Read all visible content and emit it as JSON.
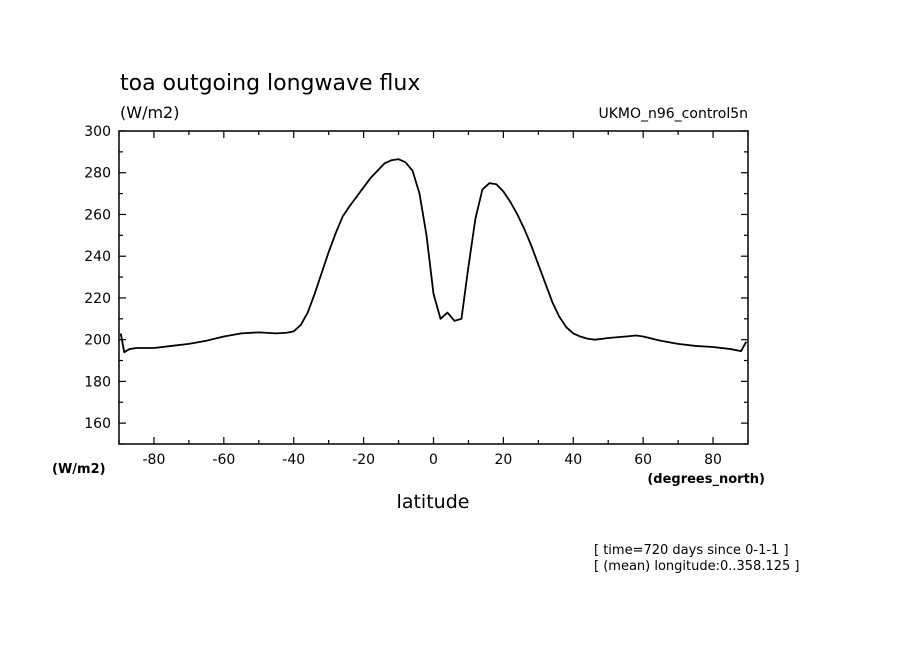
{
  "chart_data": {
    "type": "line",
    "title": "toa outgoing longwave flux",
    "units": "(W/m2)",
    "source_label": "UKMO_n96_control5n",
    "xlabel": "latitude",
    "x_units": "(degrees_north)",
    "y_units": "(W/m2)",
    "xlim": [
      -90,
      90
    ],
    "ylim": [
      150,
      300
    ],
    "x_ticks": [
      -80,
      -60,
      -40,
      -20,
      0,
      20,
      40,
      60,
      80
    ],
    "y_ticks": [
      160,
      180,
      200,
      220,
      240,
      260,
      280,
      300
    ],
    "x_tick_labels": [
      "-80",
      "-60",
      "-40",
      "-20",
      "0",
      "20",
      "40",
      "60",
      "80"
    ],
    "y_tick_labels": [
      "160",
      "180",
      "200",
      "220",
      "240",
      "260",
      "280",
      "300"
    ],
    "grid": false,
    "legend": "none",
    "annotations": [
      "[ time=720 days since 0-1-1 ]",
      "[ (mean) longitude:0..358.125 ]"
    ],
    "series": [
      {
        "x": [
          -89.5,
          -88.5,
          -87,
          -85,
          -80,
          -75,
          -70,
          -65,
          -60,
          -55,
          -50,
          -45,
          -42,
          -40,
          -38,
          -36,
          -34,
          -32,
          -30,
          -28,
          -26,
          -24,
          -22,
          -20,
          -18,
          -16,
          -14,
          -12,
          -10,
          -8,
          -6,
          -4,
          -2,
          0,
          2,
          4,
          6,
          8,
          10,
          12,
          14,
          16,
          18,
          20,
          22,
          24,
          26,
          28,
          30,
          32,
          34,
          36,
          38,
          40,
          42,
          44,
          46,
          48,
          50,
          55,
          58,
          60,
          65,
          70,
          75,
          80,
          85,
          88,
          89.5
        ],
        "values": [
          203,
          194,
          195.5,
          196,
          196,
          197,
          198,
          199.5,
          201.5,
          203,
          203.5,
          203,
          203.3,
          204,
          207,
          213,
          222,
          232,
          242,
          251,
          259,
          264,
          268.5,
          273,
          277.5,
          281,
          284.5,
          286,
          286.5,
          285,
          281,
          270,
          250,
          222,
          210,
          213,
          209,
          210,
          235,
          258,
          272,
          275,
          274.5,
          271,
          266,
          260,
          253,
          245,
          236,
          227,
          218,
          211,
          206,
          203,
          201.5,
          200.5,
          200,
          200.3,
          200.8,
          201.5,
          202,
          201.5,
          199.5,
          198,
          197,
          196.5,
          195.5,
          194.5,
          199
        ]
      }
    ]
  }
}
